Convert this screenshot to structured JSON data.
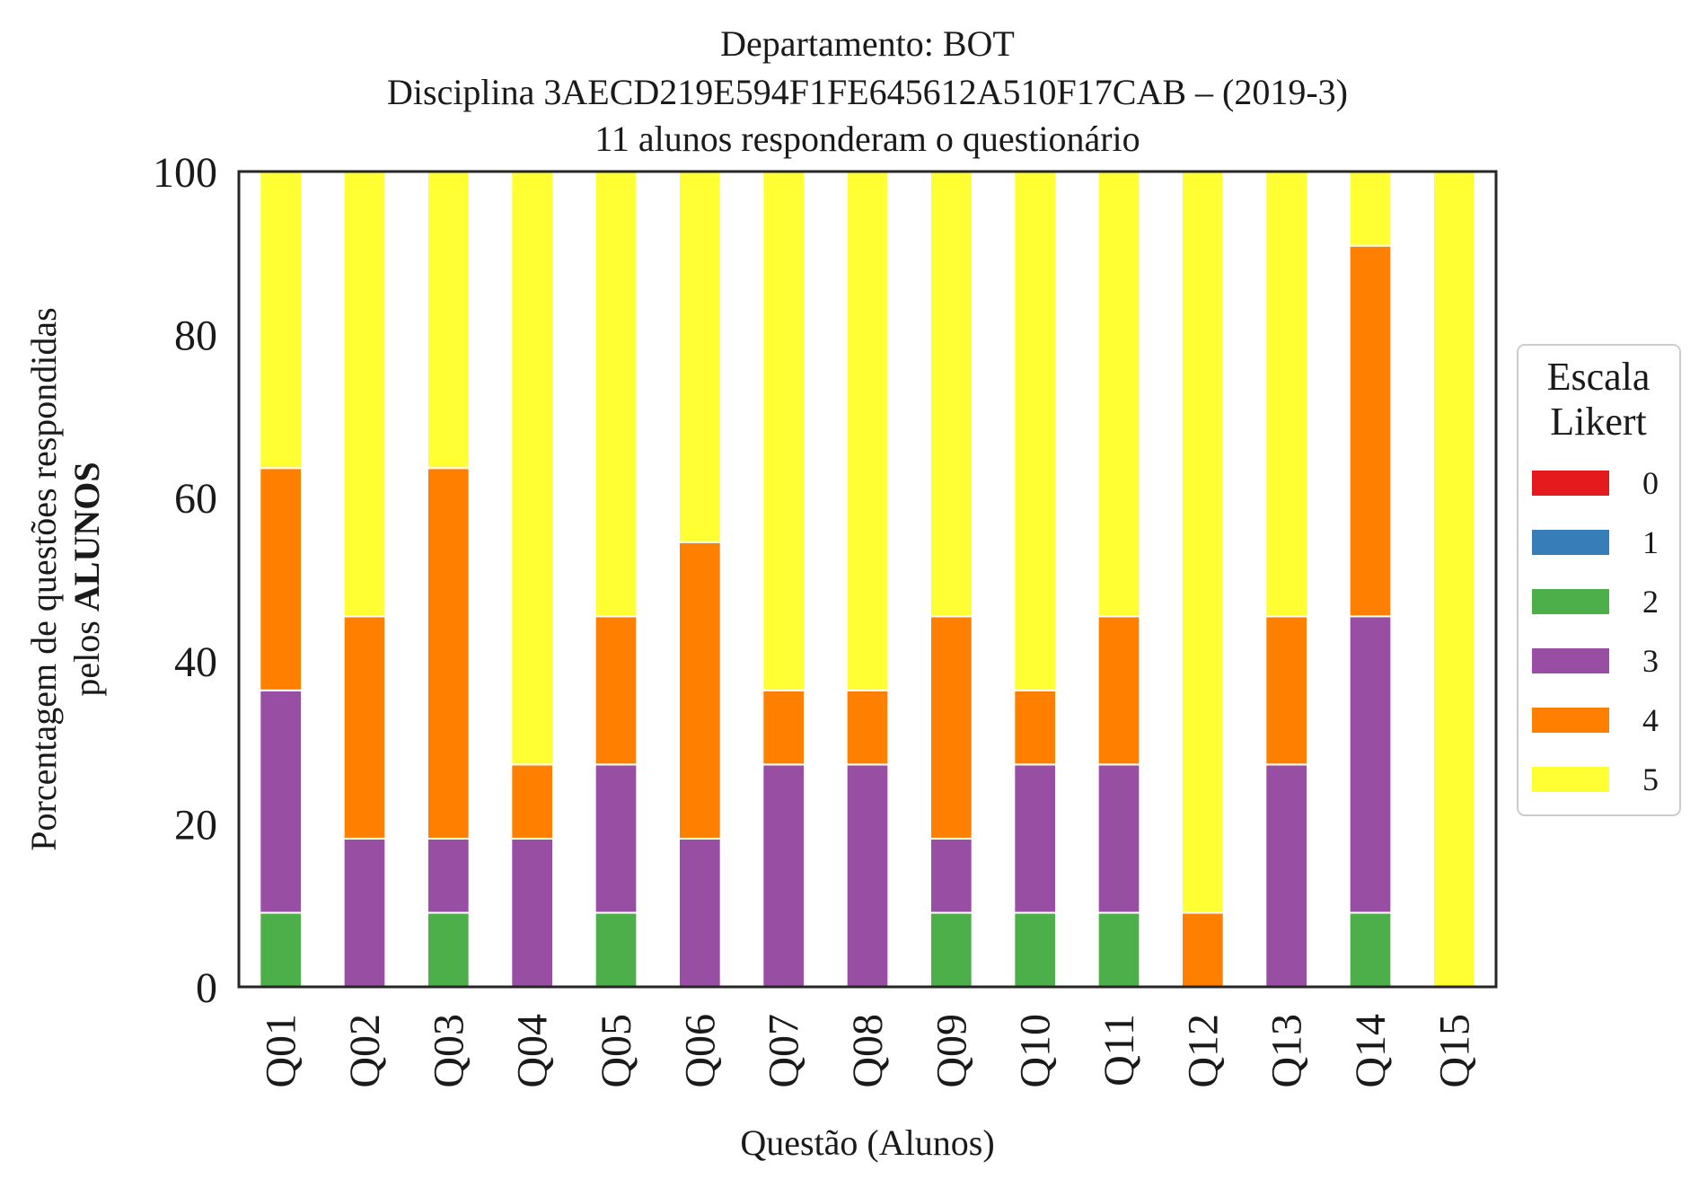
{
  "chart_data": {
    "type": "bar",
    "stacked": true,
    "title_lines": [
      "Departamento: BOT",
      "Disciplina 3AECD219E594F1FE645612A510F17CAB – (2019-3)",
      "11 alunos responderam o questionário"
    ],
    "xlabel": "Questão (Alunos)",
    "ylabel_line1": "Porcentagem de questões respondidas",
    "ylabel_line2_prefix": "pelos ",
    "ylabel_line2_bold": "ALUNOS",
    "ylim": [
      0,
      100
    ],
    "yticks": [
      "0",
      "20",
      "40",
      "60",
      "80",
      "100"
    ],
    "grid": false,
    "legend": {
      "placement": "right-outside",
      "title_lines": [
        "Escala",
        "Likert"
      ]
    },
    "categories": [
      "Q01",
      "Q02",
      "Q03",
      "Q04",
      "Q05",
      "Q06",
      "Q07",
      "Q08",
      "Q09",
      "Q10",
      "Q11",
      "Q12",
      "Q13",
      "Q14",
      "Q15"
    ],
    "series": [
      {
        "name": "0",
        "color": "#e41a1c",
        "values": [
          0,
          0,
          0,
          0,
          0,
          0,
          0,
          0,
          0,
          0,
          0,
          0,
          0,
          0,
          0
        ]
      },
      {
        "name": "1",
        "color": "#377eb8",
        "values": [
          0,
          0,
          0,
          0,
          0,
          0,
          0,
          0,
          0,
          0,
          0,
          0,
          0,
          0,
          0
        ]
      },
      {
        "name": "2",
        "color": "#4daf4a",
        "values": [
          9.09,
          0,
          9.09,
          0,
          9.09,
          0,
          0,
          0,
          9.09,
          9.09,
          9.09,
          0,
          0,
          9.09,
          0
        ]
      },
      {
        "name": "3",
        "color": "#984ea3",
        "values": [
          27.27,
          18.18,
          9.09,
          18.18,
          18.18,
          18.18,
          27.27,
          27.27,
          9.09,
          18.18,
          18.18,
          0,
          27.27,
          36.36,
          0
        ]
      },
      {
        "name": "4",
        "color": "#ff7f00",
        "values": [
          27.27,
          27.27,
          45.45,
          9.09,
          18.18,
          36.36,
          9.09,
          9.09,
          27.27,
          9.09,
          18.18,
          9.09,
          18.18,
          45.45,
          0
        ]
      },
      {
        "name": "5",
        "color": "#ffff33",
        "values": [
          36.36,
          54.55,
          36.36,
          72.73,
          54.55,
          45.45,
          63.64,
          63.64,
          54.55,
          63.64,
          54.55,
          90.91,
          54.55,
          9.09,
          100
        ]
      }
    ]
  }
}
